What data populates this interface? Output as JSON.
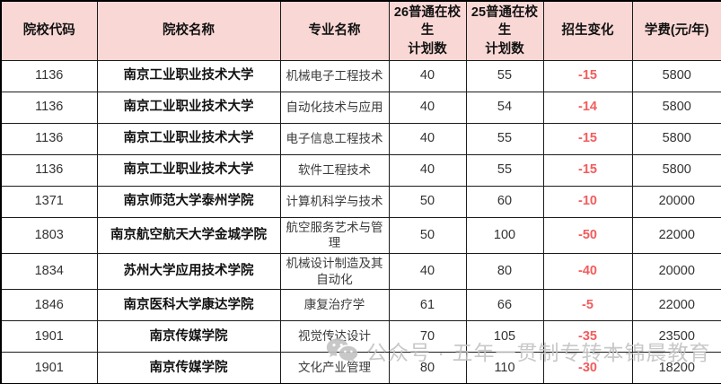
{
  "colors": {
    "header_bg": "#f8d7d5",
    "change_red": "#f25c5c",
    "grid_line": "#1c1c1c",
    "watermark_gray": "#c3c3c3"
  },
  "table": {
    "columns": [
      {
        "key": "code",
        "label": "院校代码"
      },
      {
        "key": "school",
        "label": "院校名称"
      },
      {
        "key": "major",
        "label": "专业名称"
      },
      {
        "key": "plan26",
        "label": "26普通在校生\n计划数"
      },
      {
        "key": "plan25",
        "label": "25普通在校生\n计划数"
      },
      {
        "key": "change",
        "label": "招生变化"
      },
      {
        "key": "fee",
        "label": "学费(元/年)"
      }
    ],
    "rows": [
      {
        "code": "1136",
        "school": "南京工业职业技术大学",
        "major": "机械电子工程技术",
        "plan26": "40",
        "plan25": "55",
        "change": "-15",
        "fee": "5800"
      },
      {
        "code": "1136",
        "school": "南京工业职业技术大学",
        "major": "自动化技术与应用",
        "plan26": "40",
        "plan25": "54",
        "change": "-14",
        "fee": "5800"
      },
      {
        "code": "1136",
        "school": "南京工业职业技术大学",
        "major": "电子信息工程技术",
        "plan26": "40",
        "plan25": "55",
        "change": "-15",
        "fee": "5800"
      },
      {
        "code": "1136",
        "school": "南京工业职业技术大学",
        "major": "软件工程技术",
        "plan26": "40",
        "plan25": "55",
        "change": "-15",
        "fee": "5800"
      },
      {
        "code": "1371",
        "school": "南京师范大学泰州学院",
        "major": "计算机科学与技术",
        "plan26": "50",
        "plan25": "60",
        "change": "-10",
        "fee": "20000"
      },
      {
        "code": "1803",
        "school": "南京航空航天大学金城学院",
        "major": "航空服务艺术与管理",
        "plan26": "50",
        "plan25": "100",
        "change": "-50",
        "fee": "22000"
      },
      {
        "code": "1834",
        "school": "苏州大学应用技术学院",
        "major": "机械设计制造及其自动化",
        "plan26": "40",
        "plan25": "80",
        "change": "-40",
        "fee": "20000"
      },
      {
        "code": "1846",
        "school": "南京医科大学康达学院",
        "major": "康复治疗学",
        "plan26": "61",
        "plan25": "66",
        "change": "-5",
        "fee": "22000"
      },
      {
        "code": "1901",
        "school": "南京传媒学院",
        "major": "视觉传达设计",
        "plan26": "70",
        "plan25": "105",
        "change": "-35",
        "fee": "23500"
      },
      {
        "code": "1901",
        "school": "南京传媒学院",
        "major": "文化产业管理",
        "plan26": "80",
        "plan25": "110",
        "change": "-30",
        "fee": "18200"
      }
    ]
  },
  "watermark": {
    "icon": "wechat-icon",
    "text": "公众号 · 五年一贯制专转本锦晨教育"
  }
}
